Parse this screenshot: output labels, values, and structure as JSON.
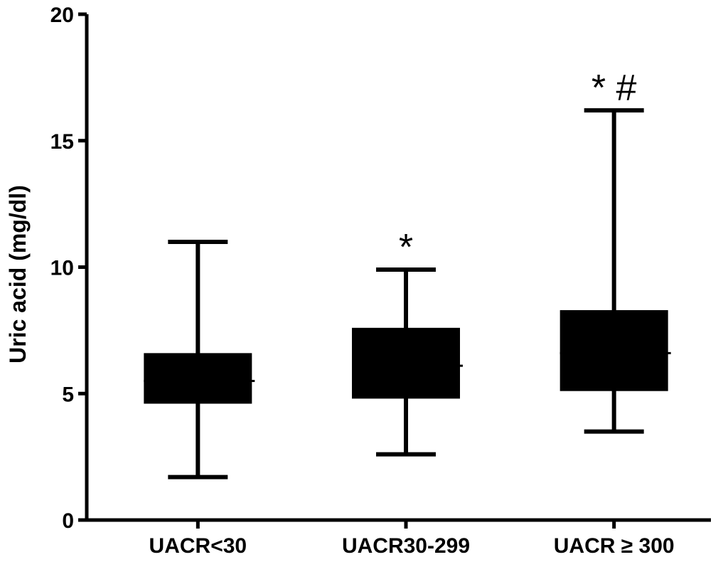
{
  "chart_data": {
    "type": "box",
    "ylabel": "Uric acid (mg/dl)",
    "ylim": [
      0,
      20
    ],
    "yticks": [
      "0",
      "5",
      "10",
      "15",
      "20"
    ],
    "categories": [
      "UACR<30",
      "UACR30-299",
      "UACR ≥ 300"
    ],
    "boxes": [
      {
        "min": 1.7,
        "q1": 4.6,
        "median": 5.5,
        "q3": 6.6,
        "max": 11.0,
        "annotation": ""
      },
      {
        "min": 2.6,
        "q1": 4.8,
        "median": 6.1,
        "q3": 7.6,
        "max": 9.9,
        "annotation": "*"
      },
      {
        "min": 3.5,
        "q1": 5.1,
        "median": 6.6,
        "q3": 8.3,
        "max": 16.2,
        "annotation": "*  #"
      }
    ],
    "grid": false,
    "colors": {
      "box": "#000000",
      "axis": "#000000"
    }
  }
}
